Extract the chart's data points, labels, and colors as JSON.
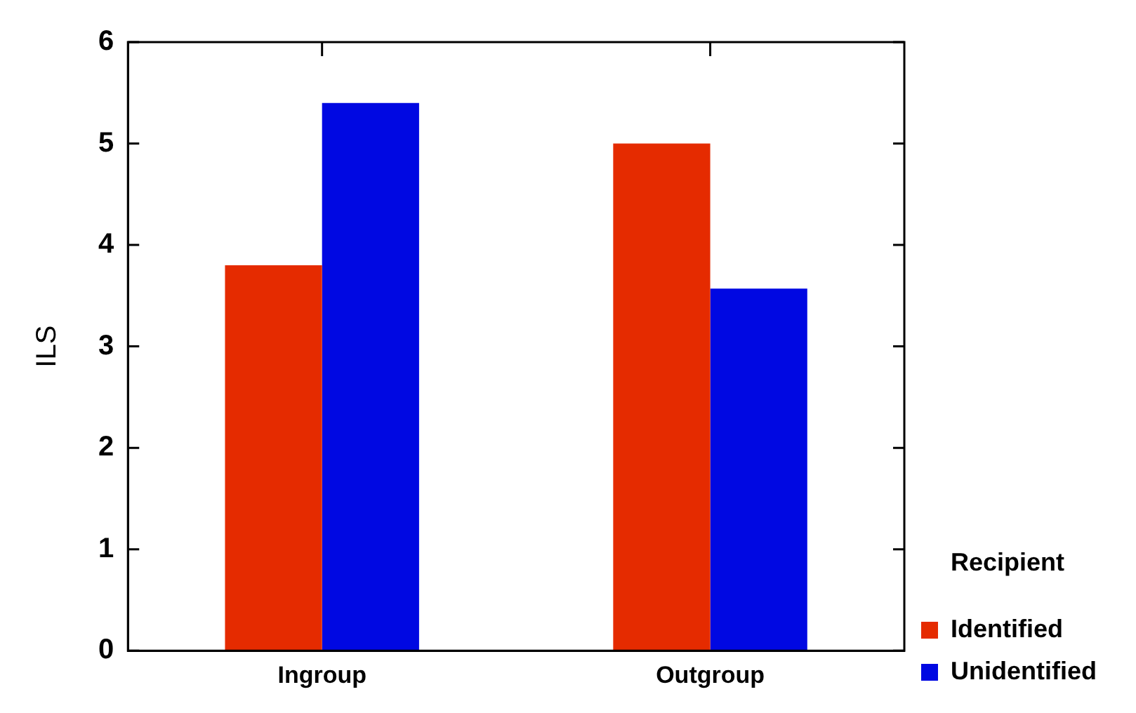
{
  "chart_data": {
    "type": "bar",
    "ylabel": "ILS",
    "legend_title": "Recipient",
    "legend": "bottom right",
    "categories": [
      "Ingroup",
      "Outgroup"
    ],
    "series": [
      {
        "name": "Identified",
        "color": "#e52b00",
        "values": [
          3.8,
          5.0
        ]
      },
      {
        "name": "Unidentified",
        "color": "#0008e2",
        "values": [
          5.4,
          3.57
        ]
      }
    ],
    "ylim": [
      0,
      6
    ],
    "yticks": [
      0,
      1,
      2,
      3,
      4,
      5,
      6
    ],
    "grid": false
  }
}
